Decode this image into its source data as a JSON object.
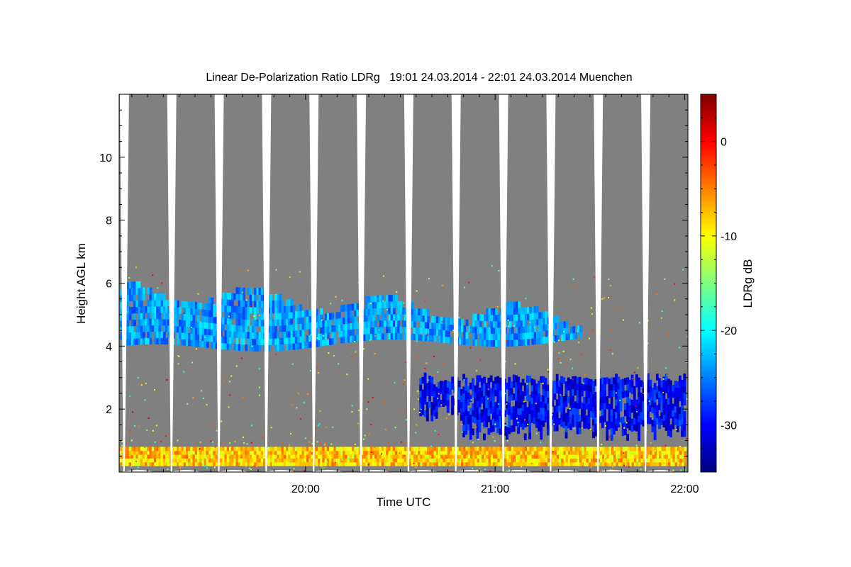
{
  "chart_data": {
    "type": "heatmap",
    "title": "Linear De-Polarization Ratio LDRg   19:01 24.03.2014 - 22:01 24.03.2014 Muenchen",
    "xlabel": "Time UTC",
    "ylabel": "Height AGL km",
    "colorbar_label": "LDRg dB",
    "x_range_hours": [
      19.0167,
      22.0167
    ],
    "y_range_km": [
      0,
      12
    ],
    "x_ticks": [
      {
        "value": 20.0,
        "label": "20:00"
      },
      {
        "value": 21.0,
        "label": "21:00"
      },
      {
        "value": 22.0,
        "label": "22:00"
      }
    ],
    "y_ticks": [
      {
        "value": 2,
        "label": "2"
      },
      {
        "value": 4,
        "label": "4"
      },
      {
        "value": 6,
        "label": "6"
      },
      {
        "value": 8,
        "label": "8"
      },
      {
        "value": 10,
        "label": "10"
      }
    ],
    "colorbar_range_db": [
      -35,
      5
    ],
    "colorbar_ticks": [
      {
        "value": 0,
        "label": "0"
      },
      {
        "value": -10,
        "label": "-10"
      },
      {
        "value": -20,
        "label": "-20"
      },
      {
        "value": -30,
        "label": "-30"
      }
    ],
    "colormap": [
      "#00007f",
      "#0000ff",
      "#007fff",
      "#00ffff",
      "#7fff7f",
      "#ffff00",
      "#ff7f00",
      "#ff0000",
      "#7f0000"
    ],
    "no_signal_color": "#808080",
    "scan_gap_times_hours": [
      19.05,
      19.3,
      19.55,
      19.8,
      20.05,
      20.3,
      20.55,
      20.8,
      21.05,
      21.3,
      21.55,
      21.8
    ],
    "layers": [
      {
        "name": "upper aerosol/cloud layer",
        "t_start": 19.02,
        "t_end": 21.45,
        "z_bottom": 3.9,
        "z_top": 5.9,
        "ldr_db": -24
      },
      {
        "name": "lower cloud layer",
        "t_start": 20.6,
        "t_end": 22.0,
        "z_bottom": 1.0,
        "z_top": 3.0,
        "ldr_db": -30
      },
      {
        "name": "near-ground layer",
        "t_start": 19.02,
        "t_end": 22.0,
        "z_bottom": 0.2,
        "z_top": 0.7,
        "ldr_db": -8
      }
    ]
  }
}
